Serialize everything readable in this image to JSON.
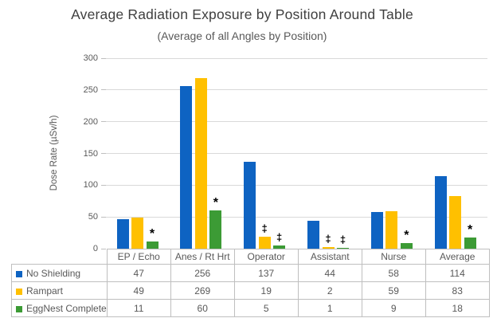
{
  "title": "Average Radiation Exposure by Position Around Table",
  "subtitle": "(Average of all Angles by Position)",
  "chart_data": {
    "type": "bar",
    "title": "Average Radiation Exposure by Position Around Table",
    "subtitle": "(Average of all Angles by Position)",
    "ylabel": "Dose Rate (µSv/h)",
    "xlabel": "",
    "ylim": [
      0,
      300
    ],
    "yticks": [
      0,
      50,
      100,
      150,
      200,
      250,
      300
    ],
    "grid": true,
    "legend_position": "table-left",
    "categories": [
      "EP / Echo",
      "Anes / Rt Hrt",
      "Operator",
      "Assistant",
      "Nurse",
      "Average"
    ],
    "series": [
      {
        "name": "No Shielding",
        "color": "#0e63c2",
        "values": [
          47,
          256,
          137,
          44,
          58,
          114
        ]
      },
      {
        "name": "Rampart",
        "color": "#ffc000",
        "values": [
          49,
          269,
          19,
          2,
          59,
          83
        ]
      },
      {
        "name": "EggNest Complete",
        "color": "#3c9b35",
        "values": [
          11,
          60,
          5,
          1,
          9,
          18
        ]
      }
    ],
    "annotations": [
      {
        "category": "EP / Echo",
        "series": "EggNest Complete",
        "marker": "*"
      },
      {
        "category": "Anes / Rt Hrt",
        "series": "EggNest Complete",
        "marker": "*"
      },
      {
        "category": "Operator",
        "series": "Rampart",
        "marker": "‡"
      },
      {
        "category": "Operator",
        "series": "EggNest Complete",
        "marker": "‡"
      },
      {
        "category": "Assistant",
        "series": "Rampart",
        "marker": "‡"
      },
      {
        "category": "Assistant",
        "series": "EggNest Complete",
        "marker": "‡"
      },
      {
        "category": "Nurse",
        "series": "EggNest Complete",
        "marker": "*"
      },
      {
        "category": "Average",
        "series": "EggNest Complete",
        "marker": "*"
      }
    ]
  },
  "colors": {
    "gridline": "#d9d9d9",
    "tick_mark": "#bfbfbf",
    "table_border": "#bfbfbf",
    "axis_text": "#595959",
    "title_text": "#3f3f3f"
  }
}
